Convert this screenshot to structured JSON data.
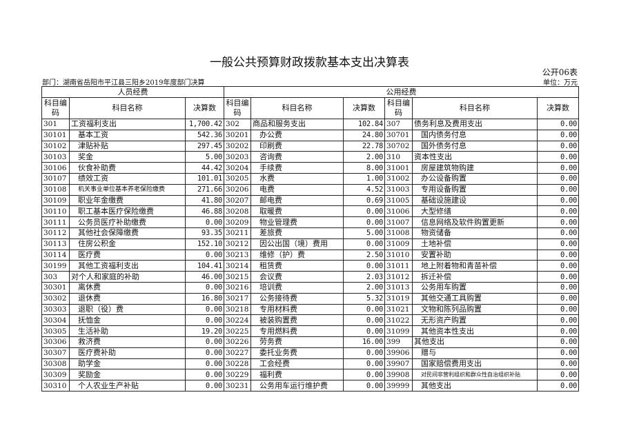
{
  "title": "一般公共预算财政拨款基本支出决算表",
  "form_no": "公开06表",
  "department": "部门：湖南省岳阳市平江县三阳乡2019年度部门决算",
  "unit": "单位：万元",
  "groups": {
    "personnel": "人员经费",
    "public": "公用经费"
  },
  "headers": {
    "code": "科目编码",
    "name": "科目名称",
    "amount": "决算数"
  },
  "rows": [
    [
      "301",
      "工资福利支出",
      "1,700.42",
      "302",
      "商品和服务支出",
      "102.84",
      "307",
      "债务利息及费用支出",
      "0.00"
    ],
    [
      "30101",
      "基本工资",
      "542.36",
      "30201",
      "办公费",
      "24.80",
      "30701",
      "国内债务付息",
      "0.00"
    ],
    [
      "30102",
      "津贴补贴",
      "297.45",
      "30202",
      "印刷费",
      "22.78",
      "30702",
      "国外债务付息",
      "0.00"
    ],
    [
      "30103",
      "奖金",
      "5.00",
      "30203",
      "咨询费",
      "2.00",
      "310",
      "资本性支出",
      "0.00"
    ],
    [
      "30106",
      "伙食补助费",
      "44.42",
      "30204",
      "手续费",
      "8.00",
      "31001",
      "房屋建筑物购建",
      "0.00"
    ],
    [
      "30107",
      "绩效工资",
      "101.01",
      "30205",
      "水费",
      "1.00",
      "31002",
      "办公设备购置",
      "0.00"
    ],
    [
      "30108",
      "机关事业单位基本养老保险缴费",
      "271.66",
      "30206",
      "电费",
      "4.52",
      "31003",
      "专用设备购置",
      "0.00"
    ],
    [
      "30109",
      "职业年金缴费",
      "41.80",
      "30207",
      "邮电费",
      "0.69",
      "31005",
      "基础设施建设",
      "0.00"
    ],
    [
      "30110",
      "职工基本医疗保险缴费",
      "46.88",
      "30208",
      "取暖费",
      "0.00",
      "31006",
      "大型修缮",
      "0.00"
    ],
    [
      "30111",
      "公务员医疗补助缴费",
      "0.00",
      "30209",
      "物业管理费",
      "0.00",
      "31007",
      "信息网络及软件购置更新",
      "0.00"
    ],
    [
      "30112",
      "其他社会保障缴费",
      "93.35",
      "30211",
      "差旅费",
      "5.00",
      "31008",
      "物资储备",
      "0.00"
    ],
    [
      "30113",
      "住房公积金",
      "152.10",
      "30212",
      "因公出国（境）费用",
      "0.00",
      "31009",
      "土地补偿",
      "0.00"
    ],
    [
      "30114",
      "医疗费",
      "0.00",
      "30213",
      "维修（护）费",
      "2.50",
      "31010",
      "安置补助",
      "0.00"
    ],
    [
      "30199",
      "其他工资福利支出",
      "104.41",
      "30214",
      "租赁费",
      "0.00",
      "31011",
      "地上附着物和青苗补偿",
      "0.00"
    ],
    [
      "303",
      "对个人和家庭的补助",
      "46.00",
      "30215",
      "会议费",
      "2.03",
      "31012",
      "拆迁补偿",
      "0.00"
    ],
    [
      "30301",
      "离休费",
      "0.00",
      "30216",
      "培训费",
      "2.00",
      "31013",
      "公务用车购置",
      "0.00"
    ],
    [
      "30302",
      "退休费",
      "16.80",
      "30217",
      "公务接待费",
      "5.32",
      "31019",
      "其他交通工具购置",
      "0.00"
    ],
    [
      "30303",
      "退职（役）费",
      "0.00",
      "30218",
      "专用材料费",
      "0.00",
      "31021",
      "文物和陈列品购置",
      "0.00"
    ],
    [
      "30304",
      "抚恤金",
      "0.00",
      "30224",
      "被装购置费",
      "0.00",
      "31022",
      "无形资产购置",
      "0.00"
    ],
    [
      "30305",
      "生活补助",
      "19.20",
      "30225",
      "专用燃料费",
      "0.00",
      "31099",
      "其他资本性支出",
      "0.00"
    ],
    [
      "30306",
      "救济费",
      "0.00",
      "30226",
      "劳务费",
      "16.00",
      "399",
      "其他支出",
      "0.00"
    ],
    [
      "30307",
      "医疗费补助",
      "0.00",
      "30227",
      "委托业务费",
      "0.00",
      "39906",
      "赠与",
      "0.00"
    ],
    [
      "30308",
      "助学金",
      "0.00",
      "30228",
      "工会经费",
      "0.00",
      "39907",
      "国家赔偿费用支出",
      "0.00"
    ],
    [
      "30309",
      "奖励金",
      "0.00",
      "30229",
      "福利费",
      "0.00",
      "39908",
      "对民间非营利组织和群众性自治组织补贴",
      "0.00"
    ],
    [
      "30310",
      "个人农业生产补贴",
      "0.00",
      "30231",
      "公务用车运行维护费",
      "0.00",
      "39999",
      "其他支出",
      "0.00"
    ]
  ]
}
